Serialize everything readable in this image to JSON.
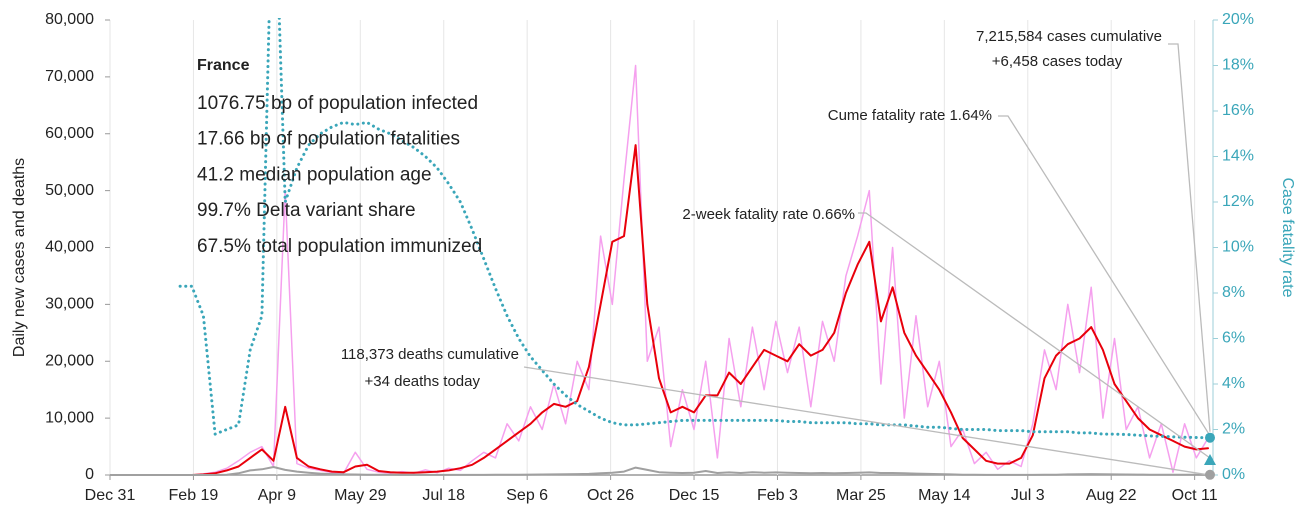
{
  "chart_data": {
    "type": "line",
    "ylabel": "Daily new cases and deaths",
    "y2label": "Case fatality rate",
    "info": {
      "title": "France",
      "lines": [
        "1076.75 bp of population infected",
        "17.66 bp of population fatalities",
        "41.2 median population age",
        "99.7% Delta variant share",
        "67.5% total population immunized"
      ]
    },
    "annotations": {
      "cases": [
        "7,215,584 cases cumulative",
        "+6,458 cases today"
      ],
      "cume": "Cume fatality rate 1.64%",
      "two_week": "2-week fatality rate 0.66%",
      "deaths": [
        "118,373 deaths cumulative",
        "+34 deaths today"
      ]
    },
    "two_week_fatality_rate": 0.66,
    "grid": "x",
    "xlim": [
      0,
      661
    ],
    "xticks": [
      {
        "value": 0,
        "label": "Dec 31"
      },
      {
        "value": 50,
        "label": "Feb 19"
      },
      {
        "value": 100,
        "label": "Apr 9"
      },
      {
        "value": 150,
        "label": "May 29"
      },
      {
        "value": 200,
        "label": "Jul 18"
      },
      {
        "value": 250,
        "label": "Sep 6"
      },
      {
        "value": 300,
        "label": "Oct 26"
      },
      {
        "value": 350,
        "label": "Dec 15"
      },
      {
        "value": 400,
        "label": "Feb 3"
      },
      {
        "value": 450,
        "label": "Mar 25"
      },
      {
        "value": 500,
        "label": "May 14"
      },
      {
        "value": 550,
        "label": "Jul 3"
      },
      {
        "value": 600,
        "label": "Aug 22"
      },
      {
        "value": 650,
        "label": "Oct 11"
      }
    ],
    "ylim": [
      0,
      80000
    ],
    "yticks": [
      {
        "value": 0,
        "label": "0"
      },
      {
        "value": 10000,
        "label": "10,000"
      },
      {
        "value": 20000,
        "label": "20,000"
      },
      {
        "value": 30000,
        "label": "30,000"
      },
      {
        "value": 40000,
        "label": "40,000"
      },
      {
        "value": 50000,
        "label": "50,000"
      },
      {
        "value": 60000,
        "label": "60,000"
      },
      {
        "value": 70000,
        "label": "70,000"
      },
      {
        "value": 80000,
        "label": "80,000"
      }
    ],
    "y2lim": [
      0,
      20
    ],
    "y2ticks": [
      {
        "value": 0,
        "label": "0%"
      },
      {
        "value": 2,
        "label": "2%"
      },
      {
        "value": 4,
        "label": "4%"
      },
      {
        "value": 6,
        "label": "6%"
      },
      {
        "value": 8,
        "label": "8%"
      },
      {
        "value": 10,
        "label": "10%"
      },
      {
        "value": 12,
        "label": "12%"
      },
      {
        "value": 14,
        "label": "14%"
      },
      {
        "value": 16,
        "label": "16%"
      },
      {
        "value": 18,
        "label": "18%"
      },
      {
        "value": 20,
        "label": "20%"
      }
    ],
    "x": [
      0,
      7,
      14,
      21,
      28,
      35,
      42,
      49,
      56,
      63,
      70,
      77,
      84,
      91,
      98,
      105,
      112,
      119,
      126,
      133,
      140,
      147,
      154,
      161,
      168,
      175,
      182,
      189,
      196,
      203,
      210,
      217,
      224,
      231,
      238,
      245,
      252,
      259,
      266,
      273,
      280,
      287,
      294,
      301,
      308,
      315,
      322,
      329,
      336,
      343,
      350,
      357,
      364,
      371,
      378,
      385,
      392,
      399,
      406,
      413,
      420,
      427,
      434,
      441,
      448,
      455,
      462,
      469,
      476,
      483,
      490,
      497,
      504,
      511,
      518,
      525,
      532,
      539,
      546,
      553,
      560,
      567,
      574,
      581,
      588,
      595,
      602,
      609,
      616,
      623,
      630,
      637,
      644,
      651,
      658
    ],
    "series": [
      {
        "color": "#f5a0ee",
        "width": 1.5,
        "values": [
          0,
          0,
          0,
          0,
          0,
          0,
          0,
          0,
          200,
          500,
          1200,
          2500,
          4000,
          5000,
          1500,
          50000,
          2000,
          1200,
          800,
          400,
          300,
          4000,
          1000,
          500,
          300,
          600,
          300,
          900,
          400,
          1200,
          800,
          2500,
          4000,
          3000,
          9000,
          6000,
          12000,
          8000,
          16000,
          9000,
          20000,
          15000,
          42000,
          30000,
          52000,
          72000,
          20000,
          26000,
          5000,
          15000,
          8000,
          20000,
          3000,
          24000,
          12000,
          26000,
          15000,
          27000,
          18000,
          26000,
          12000,
          27000,
          20000,
          35000,
          42000,
          50000,
          16000,
          40000,
          10000,
          28000,
          12000,
          20000,
          5000,
          8000,
          2000,
          4000,
          1000,
          2500,
          1500,
          9000,
          22000,
          15000,
          30000,
          18000,
          33000,
          10000,
          24000,
          8000,
          12000,
          3000,
          9000,
          500,
          9000,
          3000,
          6458
        ]
      },
      {
        "color": "#e8000b",
        "width": 2,
        "values": [
          0,
          0,
          0,
          0,
          0,
          0,
          0,
          0,
          100,
          300,
          800,
          1500,
          3000,
          4500,
          2500,
          12000,
          3000,
          1500,
          1000,
          600,
          500,
          1500,
          1800,
          700,
          500,
          400,
          400,
          500,
          600,
          800,
          1200,
          1800,
          3000,
          4500,
          6000,
          7500,
          9000,
          11000,
          12500,
          12000,
          13000,
          19000,
          30000,
          41000,
          42000,
          58000,
          30000,
          17000,
          11000,
          12000,
          11000,
          14000,
          14000,
          18000,
          16000,
          19000,
          22000,
          21000,
          20000,
          23000,
          21000,
          22000,
          25000,
          32000,
          37000,
          41000,
          27000,
          33000,
          25000,
          21000,
          18000,
          15000,
          11000,
          6500,
          4500,
          2500,
          2000,
          2000,
          3000,
          7000,
          17000,
          21000,
          23000,
          24000,
          26000,
          22000,
          16000,
          13000,
          10000,
          8000,
          7000,
          6000,
          5000,
          4500,
          4700
        ]
      },
      {
        "color": "#a0a0a0",
        "width": 2,
        "values": [
          0,
          0,
          0,
          0,
          0,
          0,
          0,
          0,
          0,
          0,
          50,
          300,
          800,
          1000,
          1400,
          900,
          600,
          400,
          250,
          150,
          100,
          80,
          60,
          40,
          30,
          20,
          15,
          15,
          15,
          15,
          15,
          20,
          25,
          40,
          50,
          60,
          70,
          80,
          100,
          120,
          150,
          200,
          300,
          400,
          600,
          1300,
          900,
          500,
          400,
          350,
          400,
          700,
          350,
          450,
          350,
          500,
          400,
          450,
          400,
          350,
          300,
          350,
          300,
          350,
          400,
          450,
          350,
          350,
          300,
          250,
          200,
          150,
          100,
          60,
          40,
          25,
          20,
          15,
          15,
          20,
          40,
          60,
          100,
          120,
          150,
          130,
          100,
          80,
          70,
          60,
          50,
          40,
          35,
          34,
          34
        ]
      },
      {
        "color": "#3aa6b9",
        "width": 3,
        "axis": "y2",
        "line_style": "dotted",
        "values": [
          null,
          null,
          null,
          null,
          null,
          null,
          8.3,
          8.3,
          7.0,
          1.8,
          2.0,
          2.2,
          5.5,
          7.0,
          28,
          12.0,
          13.5,
          14.5,
          15.0,
          15.3,
          15.5,
          15.4,
          15.5,
          15.2,
          15.0,
          14.7,
          14.4,
          14.0,
          13.5,
          12.8,
          12.0,
          10.8,
          9.5,
          8.2,
          7.0,
          6.0,
          5.2,
          4.6,
          4.0,
          3.5,
          3.1,
          2.8,
          2.5,
          2.3,
          2.2,
          2.2,
          2.25,
          2.3,
          2.35,
          2.4,
          2.4,
          2.4,
          2.4,
          2.4,
          2.4,
          2.4,
          2.4,
          2.4,
          2.35,
          2.35,
          2.3,
          2.3,
          2.3,
          2.3,
          2.25,
          2.25,
          2.2,
          2.2,
          2.2,
          2.15,
          2.1,
          2.1,
          2.05,
          2.0,
          2.0,
          2.0,
          1.95,
          1.95,
          1.95,
          1.9,
          1.9,
          1.9,
          1.9,
          1.85,
          1.85,
          1.8,
          1.8,
          1.78,
          1.75,
          1.72,
          1.7,
          1.68,
          1.66,
          1.65,
          1.64
        ]
      }
    ]
  }
}
